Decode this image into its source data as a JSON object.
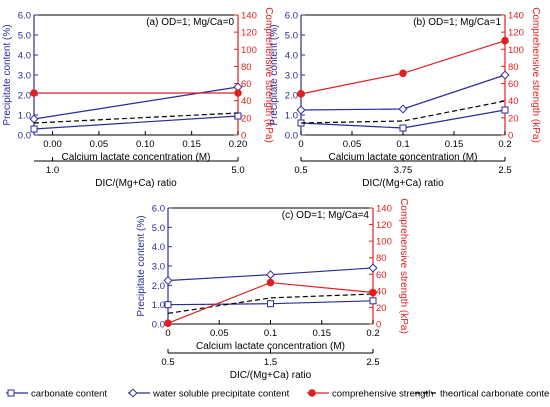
{
  "colors": {
    "carbonate": "#2b2b9a",
    "water_soluble": "#2b2b9a",
    "strength": "#e02020",
    "theoretical": "#000000",
    "left_axis": "#2b2b9a",
    "right_axis": "#e02020",
    "axis": "#000000"
  },
  "legend": {
    "items": [
      {
        "key": "carbonate",
        "label": "carbonate content"
      },
      {
        "key": "water_soluble",
        "label": "water soluble precipitate content"
      },
      {
        "key": "strength",
        "label": "comprehensive strength"
      },
      {
        "key": "theoretical",
        "label": "theortical carbonate content"
      }
    ]
  },
  "chart_data": [
    {
      "type": "line",
      "title": "(a) OD=1; Mg/Ca=0",
      "xlabel": "Calcium lactate concentration (M)",
      "x2label": "DIC/(Mg+Ca) ratio",
      "ylabel": "Precipitate content (%)",
      "y2label": "Comprehensive strength (kPa)",
      "xlim": [
        -0.02,
        0.2
      ],
      "xticks": [
        0.0,
        0.05,
        0.1,
        0.15,
        0.2
      ],
      "xtick_labels": [
        "0.00",
        "0.05",
        "0.10",
        "0.15",
        "0.20"
      ],
      "x2ticks": [
        0.0,
        0.2
      ],
      "x2tick_labels": [
        "1.0",
        "5.0"
      ],
      "ylim": [
        0,
        6
      ],
      "yticks": [
        0,
        1,
        2,
        3,
        4,
        5,
        6
      ],
      "ytick_labels": [
        "0.0",
        "1.0",
        "2.0",
        "3.0",
        "4.0",
        "5.0",
        "6.0"
      ],
      "y2lim": [
        0,
        140
      ],
      "y2ticks": [
        0,
        20,
        40,
        60,
        80,
        100,
        120,
        140
      ],
      "y2tick_labels": [
        "0",
        "20",
        "40",
        "60",
        "80",
        "100",
        "120",
        "140"
      ],
      "x": [
        -0.02,
        0.2
      ],
      "series": [
        {
          "key": "carbonate",
          "axis": "left",
          "values": [
            0.3,
            0.95
          ]
        },
        {
          "key": "water_soluble",
          "axis": "left",
          "values": [
            0.8,
            2.4
          ]
        },
        {
          "key": "theoretical",
          "axis": "left",
          "values": [
            0.6,
            1.1
          ]
        },
        {
          "key": "strength",
          "axis": "right",
          "values": [
            49,
            49
          ]
        }
      ]
    },
    {
      "type": "line",
      "title": "(b) OD=1; Mg/Ca=1",
      "xlabel": "Calcium lactate concentration (M)",
      "x2label": "DIC/(Mg+Ca) ratio",
      "ylabel": "Precipitate content (%)",
      "y2label": "Comprehensive strength (kPa)",
      "xlim": [
        0,
        0.2
      ],
      "xticks": [
        0.0,
        0.05,
        0.1,
        0.15,
        0.2
      ],
      "xtick_labels": [
        "0",
        "0.05",
        "0.1",
        "0.15",
        "0.2"
      ],
      "x2ticks": [
        0.0,
        0.1,
        0.2
      ],
      "x2tick_labels": [
        "0.5",
        "3.75",
        "2.5"
      ],
      "ylim": [
        0,
        6
      ],
      "yticks": [
        0,
        1,
        2,
        3,
        4,
        5,
        6
      ],
      "ytick_labels": [
        "0.0",
        "1.0",
        "2.0",
        "3.0",
        "4.0",
        "5.0",
        "6.0"
      ],
      "y2lim": [
        0,
        140
      ],
      "y2ticks": [
        0,
        20,
        40,
        60,
        80,
        100,
        120,
        140
      ],
      "y2tick_labels": [
        "0",
        "20",
        "40",
        "60",
        "80",
        "100",
        "120",
        "140"
      ],
      "x": [
        0,
        0.1,
        0.2
      ],
      "series": [
        {
          "key": "carbonate",
          "axis": "left",
          "values": [
            0.6,
            0.35,
            1.25
          ]
        },
        {
          "key": "water_soluble",
          "axis": "left",
          "values": [
            1.25,
            1.3,
            3.0
          ]
        },
        {
          "key": "theoretical",
          "axis": "left",
          "values": [
            0.6,
            0.7,
            1.7
          ]
        },
        {
          "key": "strength",
          "axis": "right",
          "values": [
            48,
            72,
            110
          ]
        }
      ]
    },
    {
      "type": "line",
      "title": "(c) OD=1; Mg/Ca=4",
      "xlabel": "Calcium lactate concentration (M)",
      "x2label": "DIC/(Mg+Ca) ratio",
      "ylabel": "Precipitate content (%)",
      "y2label": "Comprehensive strength (kPa)",
      "xlim": [
        0,
        0.2
      ],
      "xticks": [
        0.0,
        0.05,
        0.1,
        0.15,
        0.2
      ],
      "xtick_labels": [
        "0",
        "0.05",
        "0.1",
        "0.15",
        "0.2"
      ],
      "x2ticks": [
        0.0,
        0.1,
        0.2
      ],
      "x2tick_labels": [
        "0.5",
        "1.5",
        "2.5"
      ],
      "ylim": [
        0,
        6
      ],
      "yticks": [
        0,
        1,
        2,
        3,
        4,
        5,
        6
      ],
      "ytick_labels": [
        "0.0",
        "1.0",
        "2.0",
        "3.0",
        "4.0",
        "5.0",
        "6.0"
      ],
      "y2lim": [
        0,
        140
      ],
      "y2ticks": [
        0,
        20,
        40,
        60,
        80,
        100,
        120,
        140
      ],
      "y2tick_labels": [
        "0",
        "20",
        "40",
        "60",
        "80",
        "100",
        "120",
        "140"
      ],
      "x": [
        0,
        0.1,
        0.2
      ],
      "series": [
        {
          "key": "carbonate",
          "axis": "left",
          "values": [
            1.0,
            1.05,
            1.2
          ]
        },
        {
          "key": "water_soluble",
          "axis": "left",
          "values": [
            2.25,
            2.55,
            2.9
          ]
        },
        {
          "key": "theoretical",
          "axis": "left",
          "values": [
            0.55,
            1.35,
            1.55
          ]
        },
        {
          "key": "strength",
          "axis": "right",
          "values": [
            1,
            50,
            38
          ]
        }
      ]
    }
  ]
}
